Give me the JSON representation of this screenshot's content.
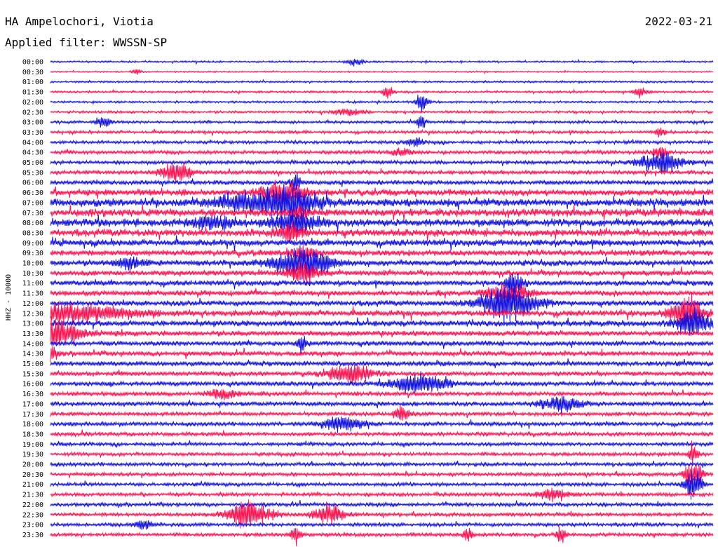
{
  "header": {
    "station": "HA Ampelochori, Viotia",
    "date": "2022-03-21",
    "filter": "Applied filter: WWSSN-SP"
  },
  "chart_data": {
    "type": "line",
    "title": "HA Ampelochori, Viotia",
    "subtitle": "Applied filter: WWSSN-SP",
    "ylabel": "HHZ - 10000",
    "xlabel": "",
    "row_labels": [
      "00:00",
      "00:30",
      "01:00",
      "01:30",
      "02:00",
      "02:30",
      "03:00",
      "03:30",
      "04:00",
      "04:30",
      "05:00",
      "05:30",
      "06:00",
      "06:30",
      "07:00",
      "07:30",
      "08:00",
      "08:30",
      "09:00",
      "09:30",
      "10:00",
      "10:30",
      "11:00",
      "11:30",
      "12:00",
      "12:30",
      "13:00",
      "13:30",
      "14:00",
      "14:30",
      "15:00",
      "15:30",
      "16:00",
      "16:30",
      "17:00",
      "17:30",
      "18:00",
      "18:30",
      "19:00",
      "19:30",
      "20:00",
      "20:30",
      "21:00",
      "21:30",
      "22:00",
      "22:30",
      "23:00",
      "23:30"
    ],
    "row_colors": [
      "#1010e0",
      "#ff1050"
    ],
    "grid": false,
    "legend": "none",
    "baseline_noise": [
      1.5,
      1.2,
      1.6,
      1.8,
      1.8,
      2.0,
      2.2,
      2.4,
      2.6,
      3.0,
      3.0,
      3.3,
      3.6,
      5.5,
      6.5,
      6.5,
      6.5,
      6.0,
      5.5,
      5.0,
      5.0,
      4.5,
      4.5,
      4.5,
      4.5,
      5.0,
      5.0,
      4.5,
      4.0,
      4.0,
      4.0,
      3.8,
      3.8,
      3.6,
      3.5,
      3.4,
      3.3,
      3.2,
      3.0,
      3.0,
      3.0,
      3.0,
      3.0,
      3.0,
      3.0,
      3.0,
      3.0,
      3.0
    ],
    "events": [
      {
        "row": 0,
        "t": 0.46,
        "amp": 7,
        "dur": 0.01
      },
      {
        "row": 1,
        "t": 0.13,
        "amp": 5,
        "dur": 0.005
      },
      {
        "row": 3,
        "t": 0.51,
        "amp": 14,
        "dur": 0.005
      },
      {
        "row": 3,
        "t": 0.89,
        "amp": 10,
        "dur": 0.008
      },
      {
        "row": 4,
        "t": 0.56,
        "amp": 18,
        "dur": 0.006
      },
      {
        "row": 5,
        "t": 0.45,
        "amp": 6,
        "dur": 0.02
      },
      {
        "row": 6,
        "t": 0.08,
        "amp": 12,
        "dur": 0.008
      },
      {
        "row": 6,
        "t": 0.56,
        "amp": 14,
        "dur": 0.004
      },
      {
        "row": 7,
        "t": 0.92,
        "amp": 12,
        "dur": 0.005
      },
      {
        "row": 8,
        "t": 0.55,
        "amp": 8,
        "dur": 0.01
      },
      {
        "row": 9,
        "t": 0.53,
        "amp": 6,
        "dur": 0.015
      },
      {
        "row": 9,
        "t": 0.92,
        "amp": 10,
        "dur": 0.008
      },
      {
        "row": 10,
        "t": 0.92,
        "amp": 18,
        "dur": 0.03
      },
      {
        "row": 11,
        "t": 0.19,
        "amp": 18,
        "dur": 0.02
      },
      {
        "row": 12,
        "t": 0.37,
        "amp": 14,
        "dur": 0.006
      },
      {
        "row": 13,
        "t": 0.35,
        "amp": 20,
        "dur": 0.03
      },
      {
        "row": 14,
        "t": 0.29,
        "amp": 12,
        "dur": 0.04
      },
      {
        "row": 14,
        "t": 0.36,
        "amp": 26,
        "dur": 0.04
      },
      {
        "row": 15,
        "t": 0.38,
        "amp": 10,
        "dur": 0.01
      },
      {
        "row": 16,
        "t": 0.37,
        "amp": 18,
        "dur": 0.03
      },
      {
        "row": 16,
        "t": 0.25,
        "amp": 10,
        "dur": 0.03
      },
      {
        "row": 17,
        "t": 0.36,
        "amp": 14,
        "dur": 0.02
      },
      {
        "row": 19,
        "t": 0.38,
        "amp": 10,
        "dur": 0.02
      },
      {
        "row": 20,
        "t": 0.38,
        "amp": 26,
        "dur": 0.04
      },
      {
        "row": 20,
        "t": 0.12,
        "amp": 10,
        "dur": 0.02
      },
      {
        "row": 21,
        "t": 0.38,
        "amp": 18,
        "dur": 0.02
      },
      {
        "row": 22,
        "t": 0.7,
        "amp": 20,
        "dur": 0.01
      },
      {
        "row": 23,
        "t": 0.69,
        "amp": 16,
        "dur": 0.03
      },
      {
        "row": 24,
        "t": 0.69,
        "amp": 30,
        "dur": 0.04
      },
      {
        "row": 25,
        "t": 0.0,
        "amp": 14,
        "dur": 0.12
      },
      {
        "row": 25,
        "t": 0.96,
        "amp": 30,
        "dur": 0.02
      },
      {
        "row": 26,
        "t": 0.97,
        "amp": 24,
        "dur": 0.02
      },
      {
        "row": 27,
        "t": 0.0,
        "amp": 26,
        "dur": 0.04
      },
      {
        "row": 28,
        "t": 0.38,
        "amp": 14,
        "dur": 0.005
      },
      {
        "row": 29,
        "t": 0.0,
        "amp": 14,
        "dur": 0.01
      },
      {
        "row": 31,
        "t": 0.45,
        "amp": 18,
        "dur": 0.03
      },
      {
        "row": 32,
        "t": 0.56,
        "amp": 16,
        "dur": 0.04
      },
      {
        "row": 33,
        "t": 0.26,
        "amp": 8,
        "dur": 0.02
      },
      {
        "row": 34,
        "t": 0.77,
        "amp": 12,
        "dur": 0.03
      },
      {
        "row": 35,
        "t": 0.53,
        "amp": 16,
        "dur": 0.008
      },
      {
        "row": 36,
        "t": 0.44,
        "amp": 12,
        "dur": 0.03
      },
      {
        "row": 39,
        "t": 0.97,
        "amp": 20,
        "dur": 0.005
      },
      {
        "row": 41,
        "t": 0.97,
        "amp": 28,
        "dur": 0.01
      },
      {
        "row": 42,
        "t": 0.97,
        "amp": 28,
        "dur": 0.01
      },
      {
        "row": 43,
        "t": 0.76,
        "amp": 10,
        "dur": 0.02
      },
      {
        "row": 45,
        "t": 0.3,
        "amp": 22,
        "dur": 0.03
      },
      {
        "row": 45,
        "t": 0.42,
        "amp": 16,
        "dur": 0.02
      },
      {
        "row": 46,
        "t": 0.14,
        "amp": 10,
        "dur": 0.01
      },
      {
        "row": 47,
        "t": 0.37,
        "amp": 16,
        "dur": 0.005
      },
      {
        "row": 47,
        "t": 0.77,
        "amp": 14,
        "dur": 0.005
      },
      {
        "row": 47,
        "t": 0.63,
        "amp": 10,
        "dur": 0.005
      }
    ]
  }
}
